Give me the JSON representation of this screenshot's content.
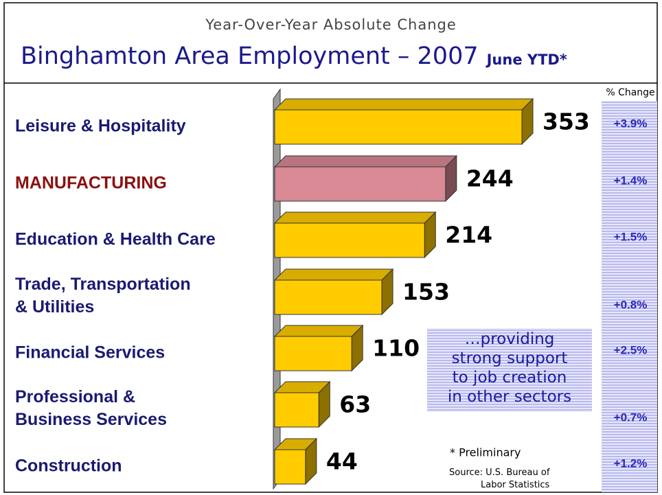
{
  "chart_data": {
    "type": "bar",
    "orientation": "horizontal",
    "subtitle": "Year-Over-Year Absolute Change",
    "title": "Binghamton Area Employment – 2007",
    "title_suffix": "June YTD*",
    "categories": [
      "Leisure & Hospitality",
      "MANUFACTURING",
      "Education & Health Care",
      "Trade, Transportation\n& Utilities",
      "Financial Services",
      "Professional &\nBusiness Services",
      "Construction"
    ],
    "values": [
      353,
      244,
      214,
      153,
      110,
      63,
      44
    ],
    "colors": [
      "#ffcc00",
      "#d98a95",
      "#ffcc00",
      "#ffcc00",
      "#ffcc00",
      "#ffcc00",
      "#ffcc00"
    ],
    "label_colors": [
      "#1a1a72",
      "#8b1010",
      "#1a1a72",
      "#1a1a72",
      "#1a1a72",
      "#1a1a72",
      "#1a1a72"
    ],
    "xlim": [
      0,
      353
    ],
    "change_header": "% Change",
    "change_labels": [
      "+3.9%",
      "+1.4%",
      "+1.5%",
      "+0.8%",
      "+2.5%",
      "+0.7%",
      "+1.2%"
    ],
    "annotation": "…providing\nstrong support\nto job creation\nin other sectors",
    "footnote": "* Preliminary",
    "source": "Source: U.S. Bureau of\nLabor Statistics"
  }
}
